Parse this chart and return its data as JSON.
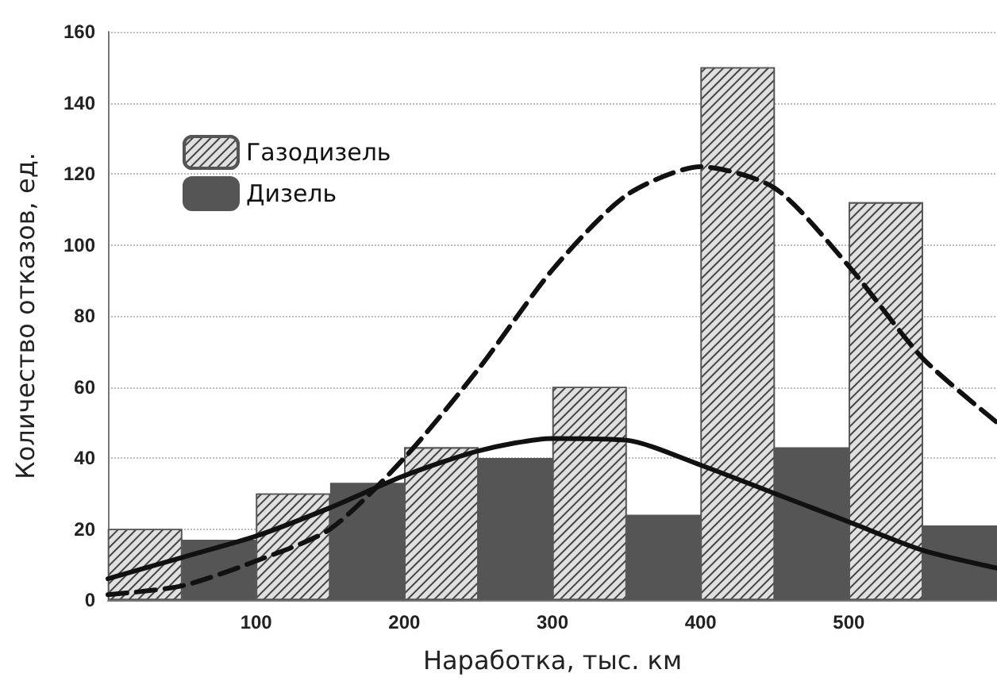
{
  "chart_data": {
    "type": "bar",
    "xlabel": "Наработка, тыс. км",
    "ylabel": "Количество отказов, ед.",
    "xlim": [
      0,
      600
    ],
    "xticks": [
      100,
      200,
      300,
      400,
      500
    ],
    "ylim": [
      0,
      160
    ],
    "yticks": [
      0,
      20,
      40,
      60,
      80,
      100,
      120,
      140,
      160
    ],
    "grid": "y",
    "legend": "top left",
    "series": [
      {
        "name": "Газодизель",
        "color": "#e0e0e0",
        "x": [
          25,
          125,
          225,
          325,
          425,
          525
        ],
        "values": [
          20,
          30,
          43,
          60,
          150,
          112
        ]
      },
      {
        "name": "Дизель",
        "color": "#555555",
        "x": [
          75,
          175,
          275,
          375,
          475,
          575
        ],
        "values": [
          17,
          33,
          40,
          24,
          43,
          21
        ]
      },
      {
        "type": "line",
        "line_style": "dashed",
        "marker": "none",
        "color": "#111111",
        "x": [
          0,
          50,
          100,
          150,
          200,
          250,
          300,
          350,
          400,
          450,
          500,
          550,
          600
        ],
        "values": [
          1.5,
          4,
          11,
          20,
          40,
          65,
          93,
          114,
          122,
          116,
          94,
          68,
          50
        ]
      },
      {
        "type": "line",
        "line_style": "solid",
        "marker": "none",
        "color": "#111111",
        "x": [
          0,
          50,
          100,
          150,
          200,
          250,
          300,
          350,
          400,
          450,
          500,
          550,
          600
        ],
        "values": [
          6,
          12,
          18,
          26,
          35,
          42,
          45.5,
          45,
          38,
          30,
          22,
          14,
          9
        ]
      }
    ]
  }
}
